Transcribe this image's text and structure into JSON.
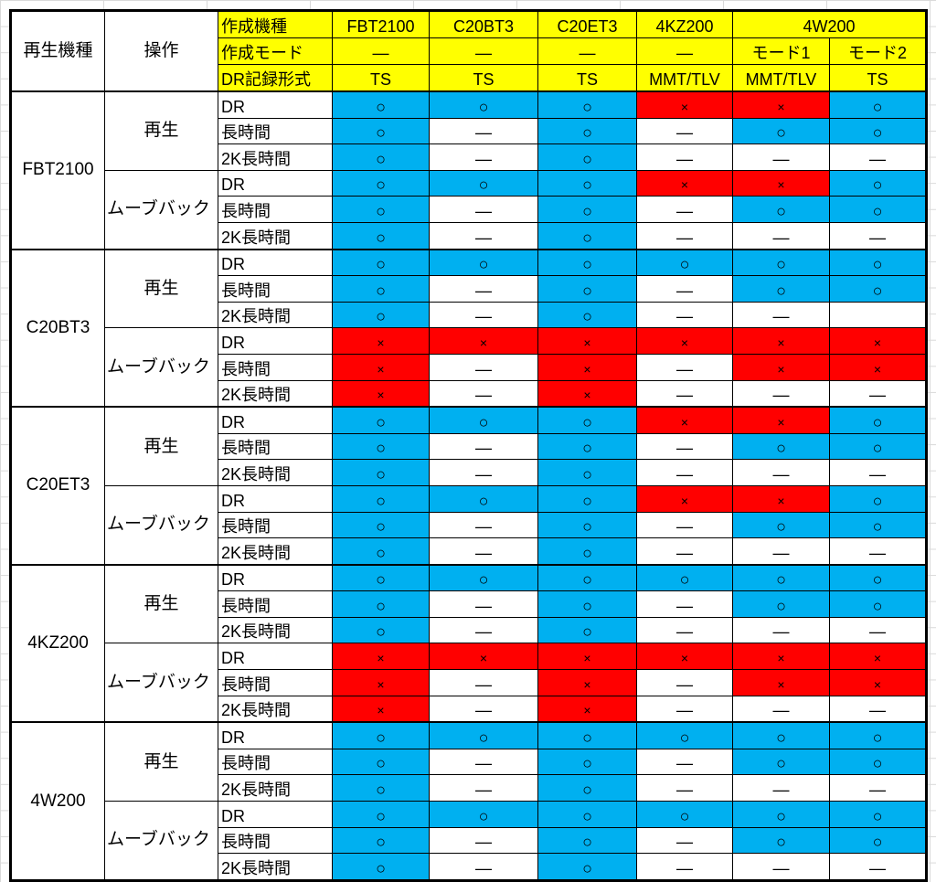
{
  "colors": {
    "ok": "#00b0f0",
    "ng": "#ff0000",
    "header": "#ffff00",
    "none": "#ffffff"
  },
  "header": {
    "col_player": "再生機種",
    "col_operation": "操作",
    "row_labels": [
      "作成機種",
      "作成モード",
      "DR記録形式"
    ],
    "models": [
      "FBT2100",
      "C20BT3",
      "C20ET3",
      "4KZ200",
      "4W200"
    ],
    "modes": [
      "—",
      "—",
      "—",
      "—",
      "モード1",
      "モード2"
    ],
    "formats": [
      "TS",
      "TS",
      "TS",
      "MMT/TLV",
      "MMT/TLV",
      "TS"
    ]
  },
  "operations": [
    "再生",
    "ムーブバック"
  ],
  "sub_operations": [
    "DR",
    "長時間",
    "2K長時間"
  ],
  "groups": [
    {
      "player": "FBT2100",
      "rows": [
        [
          "○",
          "○",
          "○",
          "×",
          "×",
          "○"
        ],
        [
          "○",
          "—",
          "○",
          "—",
          "○",
          "○"
        ],
        [
          "○",
          "—",
          "○",
          "—",
          "—",
          "—"
        ],
        [
          "○",
          "○",
          "○",
          "×",
          "×",
          "○"
        ],
        [
          "○",
          "—",
          "○",
          "—",
          "○",
          "○"
        ],
        [
          "○",
          "—",
          "○",
          "—",
          "—",
          "—"
        ]
      ]
    },
    {
      "player": "C20BT3",
      "rows": [
        [
          "○",
          "○",
          "○",
          "○",
          "○",
          "○"
        ],
        [
          "○",
          "—",
          "○",
          "—",
          "○",
          "○"
        ],
        [
          "○",
          "—",
          "○",
          "—",
          "—",
          ""
        ],
        [
          "×",
          "×",
          "×",
          "×",
          "×",
          "×"
        ],
        [
          "×",
          "—",
          "×",
          "—",
          "×",
          "×"
        ],
        [
          "×",
          "—",
          "×",
          "—",
          "—",
          "—"
        ]
      ]
    },
    {
      "player": "C20ET3",
      "rows": [
        [
          "○",
          "○",
          "○",
          "×",
          "×",
          "○"
        ],
        [
          "○",
          "—",
          "○",
          "—",
          "○",
          "○"
        ],
        [
          "○",
          "—",
          "○",
          "—",
          "—",
          "—"
        ],
        [
          "○",
          "○",
          "○",
          "×",
          "×",
          "○"
        ],
        [
          "○",
          "—",
          "○",
          "—",
          "○",
          "○"
        ],
        [
          "○",
          "—",
          "○",
          "—",
          "—",
          "—"
        ]
      ]
    },
    {
      "player": "4KZ200",
      "rows": [
        [
          "○",
          "○",
          "○",
          "○",
          "○",
          "○"
        ],
        [
          "○",
          "—",
          "○",
          "—",
          "○",
          "○"
        ],
        [
          "○",
          "—",
          "○",
          "—",
          "—",
          "—"
        ],
        [
          "×",
          "×",
          "×",
          "×",
          "×",
          "×"
        ],
        [
          "×",
          "—",
          "×",
          "—",
          "×",
          "×"
        ],
        [
          "×",
          "—",
          "×",
          "—",
          "—",
          "—"
        ]
      ]
    },
    {
      "player": "4W200",
      "rows": [
        [
          "○",
          "○",
          "○",
          "○",
          "○",
          "○"
        ],
        [
          "○",
          "—",
          "○",
          "—",
          "○",
          "○"
        ],
        [
          "○",
          "—",
          "○",
          "—",
          "—",
          "—"
        ],
        [
          "○",
          "○",
          "○",
          "○",
          "○",
          "○"
        ],
        [
          "○",
          "—",
          "○",
          "—",
          "○",
          "○"
        ],
        [
          "○",
          "—",
          "○",
          "—",
          "—",
          "—"
        ]
      ]
    }
  ]
}
